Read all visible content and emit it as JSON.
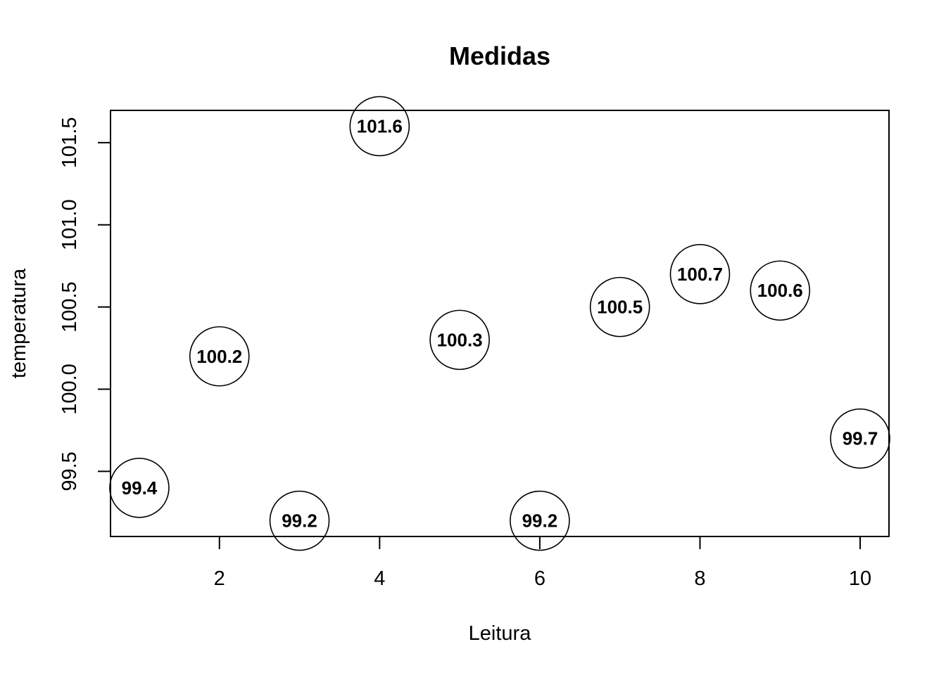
{
  "chart_data": {
    "type": "scatter",
    "title": "Medidas",
    "xlabel": "Leitura",
    "ylabel": "temperatura",
    "x": [
      1,
      2,
      3,
      4,
      5,
      6,
      7,
      8,
      9,
      10
    ],
    "y": [
      99.4,
      100.2,
      99.2,
      101.6,
      100.3,
      99.2,
      100.5,
      100.7,
      100.6,
      99.7
    ],
    "point_labels": [
      "99.4",
      "100.2",
      "99.2",
      "101.6",
      "100.3",
      "99.2",
      "100.5",
      "100.7",
      "100.6",
      "99.7"
    ],
    "xlim": [
      0.64,
      10.36
    ],
    "ylim": [
      99.104,
      101.696
    ],
    "xticks": [
      2,
      4,
      6,
      8,
      10
    ],
    "xtick_labels": [
      "2",
      "4",
      "6",
      "8",
      "10"
    ],
    "yticks": [
      99.5,
      100.0,
      100.5,
      101.0,
      101.5
    ],
    "ytick_labels": [
      "99.5",
      "100.0",
      "100.5",
      "101.0",
      "101.5"
    ],
    "grid": false,
    "marker": "open-circle",
    "colors": {
      "foreground": "#000000",
      "background": "#ffffff"
    }
  }
}
